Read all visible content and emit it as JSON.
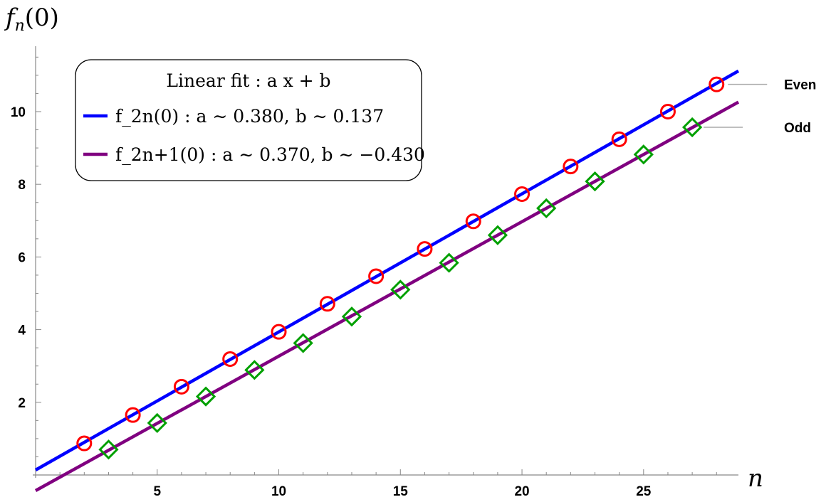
{
  "chart_data": {
    "type": "scatter",
    "xlabel": "n",
    "ylabel": "f_n(0)",
    "xlim": [
      0,
      28.9
    ],
    "ylim": [
      0,
      11.8
    ],
    "xticks": [
      5,
      10,
      15,
      20,
      25
    ],
    "yticks": [
      2,
      4,
      6,
      8,
      10
    ],
    "grid": false,
    "legend": {
      "position": "top-left",
      "title": "Linear fit : a x + b",
      "entries": [
        {
          "label": "f_2n(0) : a ∼ 0.380, b ∼ 0.137",
          "color": "#0000ff"
        },
        {
          "label": "f_2n+1(0) : a ∼ 0.370, b ∼ −0.430",
          "color": "#800080"
        }
      ]
    },
    "series": [
      {
        "name": "Even",
        "marker": "circle",
        "color": "#ff0000",
        "x": [
          2,
          4,
          6,
          8,
          10,
          12,
          14,
          16,
          18,
          20,
          22,
          24,
          26,
          28
        ],
        "y": [
          0.87,
          1.65,
          2.43,
          3.19,
          3.94,
          4.71,
          5.47,
          6.22,
          6.98,
          7.73,
          8.49,
          9.24,
          10.0,
          10.75
        ]
      },
      {
        "name": "Odd",
        "marker": "diamond",
        "color": "#00a000",
        "x": [
          3,
          5,
          7,
          9,
          11,
          13,
          15,
          17,
          19,
          21,
          23,
          25,
          27
        ],
        "y": [
          0.7,
          1.43,
          2.16,
          2.89,
          3.63,
          4.36,
          5.1,
          5.84,
          6.6,
          7.34,
          8.08,
          8.82,
          9.57
        ]
      }
    ],
    "fits": [
      {
        "color": "#0000ff",
        "a": 0.38,
        "b": 0.137
      },
      {
        "color": "#800080",
        "a": 0.37,
        "b": -0.43
      }
    ]
  }
}
